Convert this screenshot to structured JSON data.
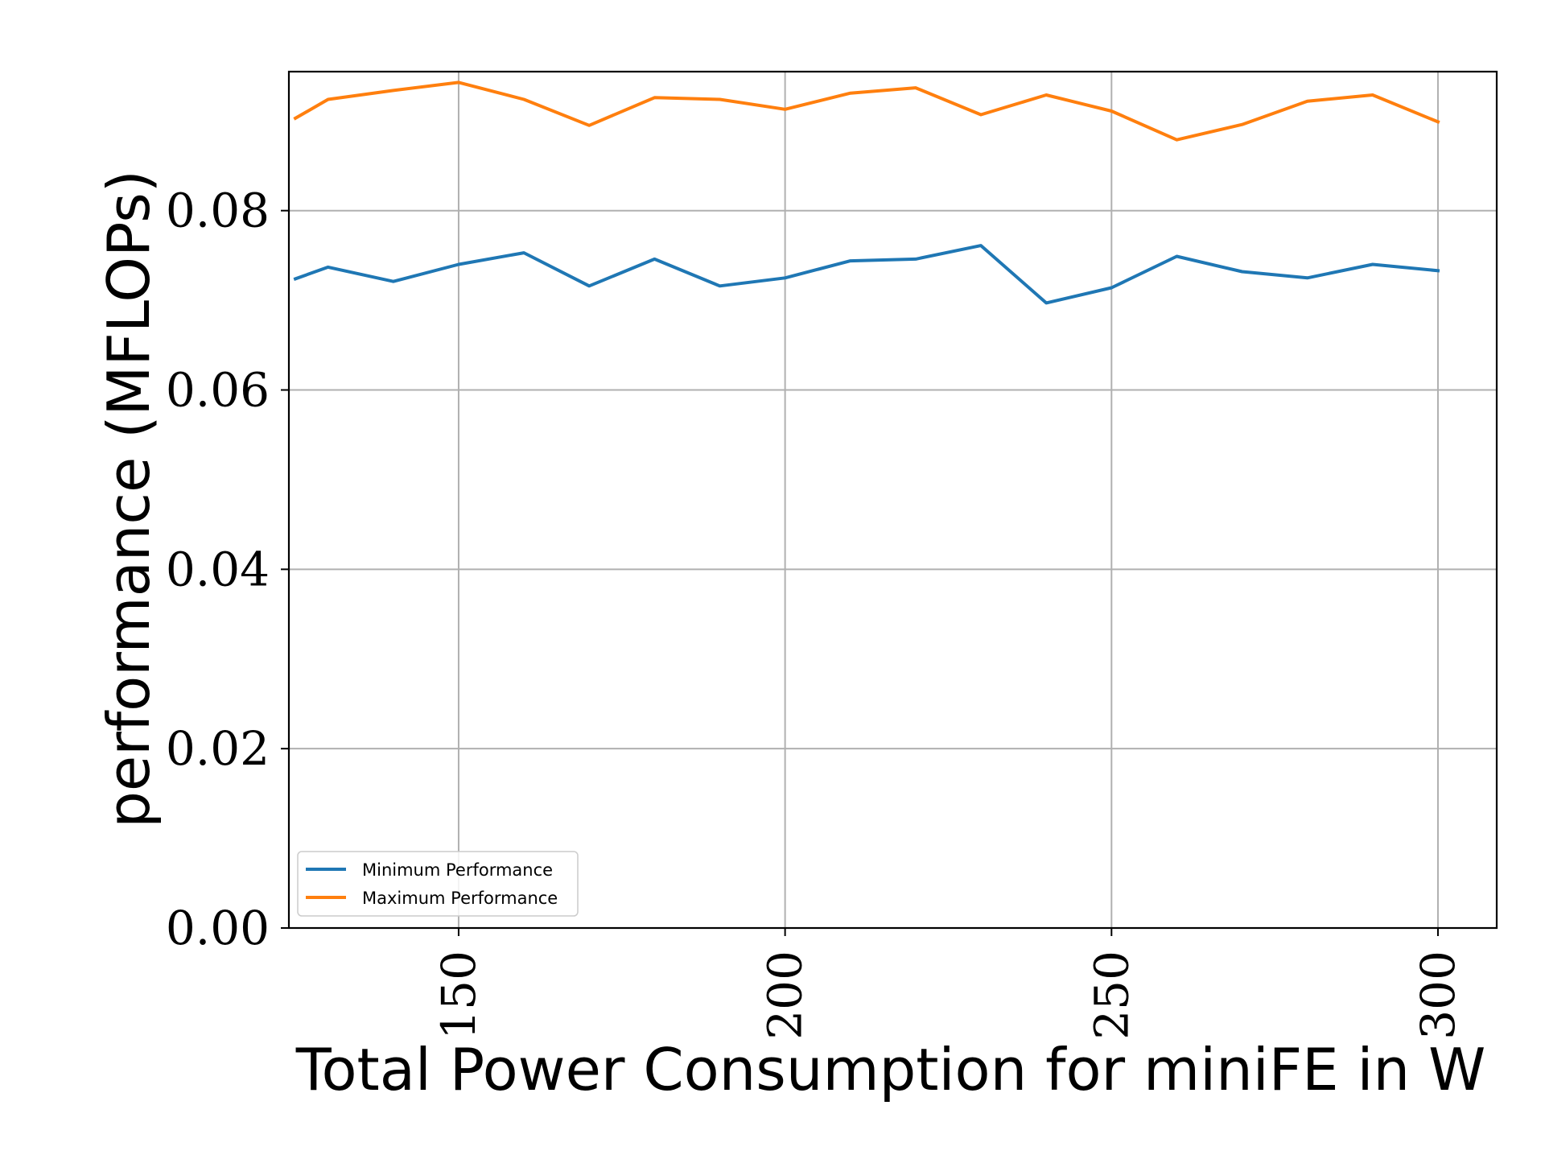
{
  "chart_data": {
    "type": "line",
    "title": "",
    "xlabel": "Total Power Consumption for miniFE in W",
    "ylabel": "performance (MFLOPs)",
    "xlim": [
      124,
      309
    ],
    "ylim": [
      0.0,
      0.0955
    ],
    "xticks": [
      150,
      200,
      250,
      300
    ],
    "xtick_labels": [
      "150",
      "200",
      "250",
      "300"
    ],
    "yticks": [
      0.0,
      0.02,
      0.04,
      0.06,
      0.08
    ],
    "ytick_labels": [
      "0.00",
      "0.02",
      "0.04",
      "0.06",
      "0.08"
    ],
    "grid": true,
    "legend_position": "lower-left",
    "x": [
      125,
      130,
      140,
      150,
      160,
      170,
      180,
      190,
      200,
      210,
      220,
      230,
      240,
      250,
      260,
      270,
      280,
      290,
      300
    ],
    "series": [
      {
        "name": "Minimum Performance",
        "color": "#1f77b4",
        "values": [
          0.0724,
          0.0737,
          0.0721,
          0.074,
          0.0753,
          0.0716,
          0.0746,
          0.0716,
          0.0725,
          0.0744,
          0.0746,
          0.0761,
          0.0697,
          0.0714,
          0.0749,
          0.0732,
          0.0725,
          0.074,
          0.0733
        ]
      },
      {
        "name": "Maximum Performance",
        "color": "#ff7f0e",
        "values": [
          0.0903,
          0.0924,
          0.0934,
          0.0943,
          0.0924,
          0.0895,
          0.0926,
          0.0924,
          0.0913,
          0.0931,
          0.0937,
          0.0907,
          0.0929,
          0.0911,
          0.0879,
          0.0896,
          0.0922,
          0.0929,
          0.0899
        ]
      }
    ]
  }
}
